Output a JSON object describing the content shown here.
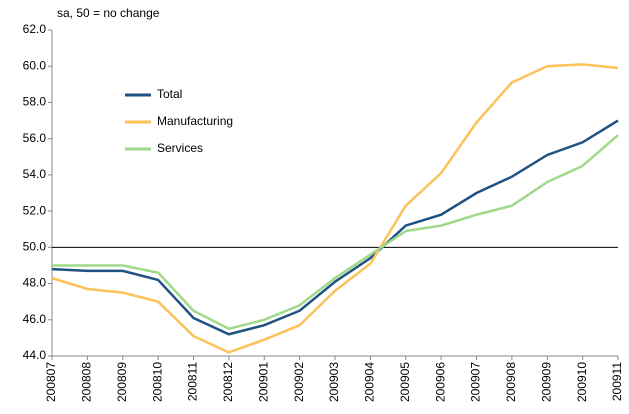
{
  "chart_data": {
    "type": "line",
    "subtitle": "sa, 50 = no change",
    "categories": [
      "200807",
      "200808",
      "200809",
      "200810",
      "200811",
      "200812",
      "200901",
      "200902",
      "200903",
      "200904",
      "200905",
      "200906",
      "200907",
      "200908",
      "200909",
      "200910",
      "200911"
    ],
    "series": [
      {
        "name": "Total",
        "color": "#1f5280",
        "values": [
          48.8,
          48.7,
          48.7,
          48.2,
          46.1,
          45.2,
          45.7,
          46.5,
          48.1,
          49.4,
          51.2,
          51.8,
          53.0,
          53.9,
          55.1,
          55.8,
          57.0
        ]
      },
      {
        "name": "Manufacturing",
        "color": "#fbc25a",
        "values": [
          48.3,
          47.7,
          47.5,
          47.0,
          45.1,
          44.2,
          44.9,
          45.7,
          47.6,
          49.1,
          52.3,
          54.1,
          56.9,
          59.1,
          60.0,
          60.1,
          59.9
        ]
      },
      {
        "name": "Services",
        "color": "#9fd989",
        "values": [
          49.0,
          49.0,
          49.0,
          48.6,
          46.5,
          45.5,
          46.0,
          46.8,
          48.3,
          49.6,
          50.9,
          51.2,
          51.8,
          52.3,
          53.6,
          54.5,
          56.2
        ]
      }
    ],
    "ylim": [
      44,
      62
    ],
    "yticks": [
      {
        "value": 44,
        "label": "44.0"
      },
      {
        "value": 46,
        "label": "46.0"
      },
      {
        "value": 48,
        "label": "48.0"
      },
      {
        "value": 50,
        "label": "50.0"
      },
      {
        "value": 52,
        "label": "52.0"
      },
      {
        "value": 54,
        "label": "54.0"
      },
      {
        "value": 56,
        "label": "56.0"
      },
      {
        "value": 58,
        "label": "58.0"
      },
      {
        "value": 60,
        "label": "60.0"
      },
      {
        "value": 62,
        "label": "62.0"
      }
    ],
    "reference_line": 50,
    "grid": false,
    "legend": "upper left"
  }
}
